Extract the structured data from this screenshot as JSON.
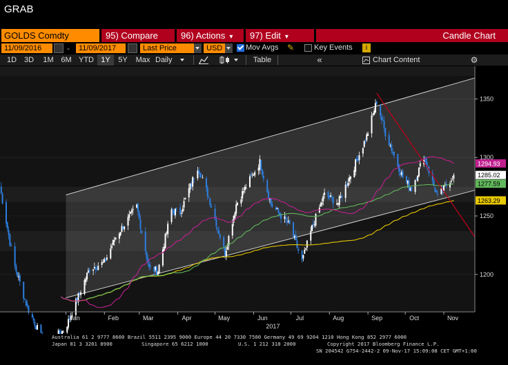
{
  "window": {
    "title": "GRAB"
  },
  "toolbar": {
    "ticker": "GOLDS Comdty",
    "compare_num": "95",
    "compare_label": "Compare",
    "actions_num": "96",
    "actions_label": "Actions",
    "edit_num": "97",
    "edit_label": "Edit",
    "chart_type": "Candle Chart"
  },
  "controls": {
    "start_date": "11/09/2016",
    "end_date": "11/09/2017",
    "price_field": "Last Price",
    "currency": "USD",
    "mov_avgs_label": "Mov Avgs",
    "mov_avgs_checked": true,
    "key_events_label": "Key Events",
    "key_events_checked": false,
    "info_icon": "i"
  },
  "periods": {
    "items": [
      "1D",
      "3D",
      "1M",
      "6M",
      "YTD",
      "1Y",
      "5Y",
      "Max"
    ],
    "selected": "1Y",
    "frequency": "Daily",
    "table_label": "Table",
    "chart_content_label": "Chart Content"
  },
  "colors": {
    "orange": "#ff8c00",
    "red_header": "#b0001e",
    "candle_up": "#ffffff",
    "candle_down": "#2d7fe0",
    "ma_green": "#62b85c",
    "ma_magenta": "#c0208f",
    "ma_yellow": "#e8c800",
    "trend_red": "#c0001a",
    "channel": "#cccccc"
  },
  "chart_data": {
    "type": "candlestick",
    "security": "GOLDS Comdty",
    "x_tick_labels": [
      "Jan",
      "Feb",
      "Mar",
      "Apr",
      "May",
      "Jun",
      "Jul",
      "Aug",
      "Sep",
      "Oct",
      "Nov"
    ],
    "year_label": "2017",
    "y_ticks": [
      1200,
      1250,
      1300,
      1350
    ],
    "ylim": [
      1168,
      1378
    ],
    "close_series": [
      {
        "date": "2016-11-09",
        "close": 1275
      },
      {
        "date": "2016-11-20",
        "close": 1210
      },
      {
        "date": "2016-12-01",
        "close": 1172
      },
      {
        "date": "2016-12-15",
        "close": 1140
      },
      {
        "date": "2016-12-31",
        "close": 1153
      },
      {
        "date": "2017-01-03",
        "close": 1160
      },
      {
        "date": "2017-01-20",
        "close": 1205
      },
      {
        "date": "2017-02-01",
        "close": 1210
      },
      {
        "date": "2017-02-10",
        "close": 1232
      },
      {
        "date": "2017-02-27",
        "close": 1258
      },
      {
        "date": "2017-03-09",
        "close": 1205
      },
      {
        "date": "2017-03-16",
        "close": 1203
      },
      {
        "date": "2017-03-27",
        "close": 1255
      },
      {
        "date": "2017-04-03",
        "close": 1253
      },
      {
        "date": "2017-04-17",
        "close": 1292
      },
      {
        "date": "2017-04-26",
        "close": 1266
      },
      {
        "date": "2017-05-09",
        "close": 1218
      },
      {
        "date": "2017-05-18",
        "close": 1260
      },
      {
        "date": "2017-06-06",
        "close": 1296
      },
      {
        "date": "2017-06-15",
        "close": 1260
      },
      {
        "date": "2017-06-30",
        "close": 1242
      },
      {
        "date": "2017-07-10",
        "close": 1211
      },
      {
        "date": "2017-07-18",
        "close": 1240
      },
      {
        "date": "2017-07-28",
        "close": 1268
      },
      {
        "date": "2017-08-08",
        "close": 1261
      },
      {
        "date": "2017-08-20",
        "close": 1290
      },
      {
        "date": "2017-08-31",
        "close": 1318
      },
      {
        "date": "2017-09-08",
        "close": 1348
      },
      {
        "date": "2017-09-15",
        "close": 1321
      },
      {
        "date": "2017-09-29",
        "close": 1283
      },
      {
        "date": "2017-10-06",
        "close": 1273
      },
      {
        "date": "2017-10-16",
        "close": 1301
      },
      {
        "date": "2017-10-27",
        "close": 1266
      },
      {
        "date": "2017-11-09",
        "close": 1285.02
      }
    ],
    "moving_averages": [
      {
        "color": "magenta",
        "last": 1294.93
      },
      {
        "color": "green",
        "last": 1277.59
      },
      {
        "color": "yellow",
        "last": 1263.29
      }
    ],
    "last_price": 1285.02,
    "price_labels": [
      "1294.93",
      "1285.02",
      "1277.59",
      "1263.29"
    ],
    "channel": {
      "upper": [
        {
          "date": "2017-01-01",
          "y": 1268
        },
        {
          "date": "2017-11-26",
          "y": 1368
        }
      ],
      "lower": [
        {
          "date": "2017-01-01",
          "y": 1180
        },
        {
          "date": "2017-11-26",
          "y": 1272
        }
      ]
    },
    "downtrend": [
      {
        "date": "2017-09-08",
        "y": 1355
      },
      {
        "date": "2017-11-26",
        "y": 1232
      }
    ]
  },
  "footer": {
    "line1": "Australia 61 2 9777 8600 Brazil 5511 2395 9000 Europe 44 20 7330 7500 Germany 49 69 9204 1210 Hong Kong 852 2977 6000",
    "line2a": "Japan 81 3 3201 8900",
    "line2b": "Singapore 65 6212 1000",
    "line2c": "U.S. 1 212 318 2000",
    "line2d": "Copyright 2017 Bloomberg Finance L.P.",
    "line3": "SN 204542 G754-2442-2 09-Nov-17 15:09:08 CET  GMT+1:00"
  }
}
